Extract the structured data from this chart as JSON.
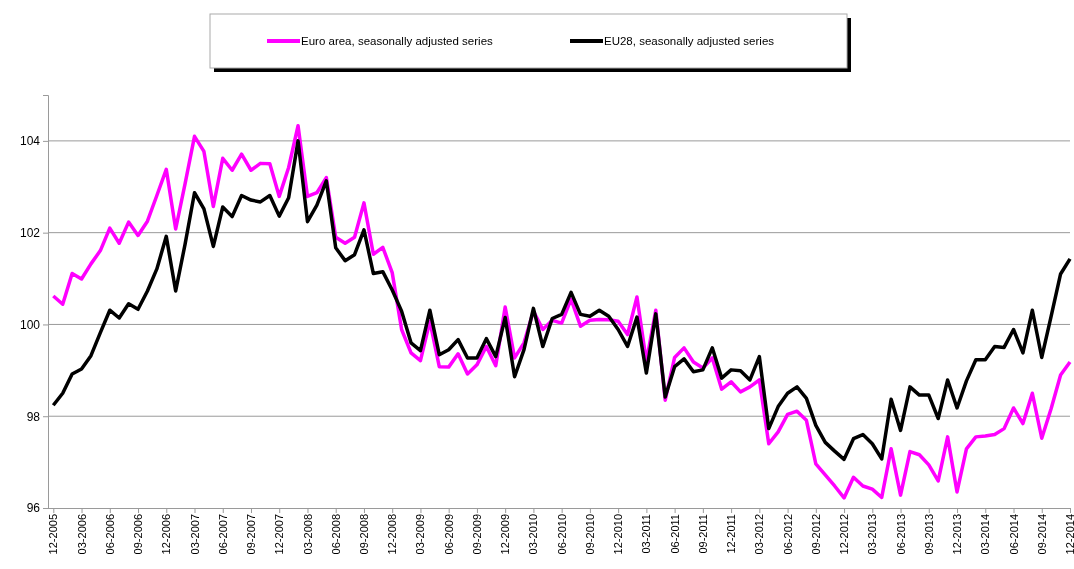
{
  "chart_data": {
    "type": "line",
    "categories": [
      "12-2005",
      null,
      null,
      "03-2006",
      null,
      null,
      "06-2006",
      null,
      null,
      "09-2006",
      null,
      null,
      "12-2006",
      null,
      null,
      "03-2007",
      null,
      null,
      "06-2007",
      null,
      null,
      "09-2007",
      null,
      null,
      "12-2007",
      null,
      null,
      "03-2008",
      null,
      null,
      "06-2008",
      null,
      null,
      "09-2008",
      null,
      null,
      "12-2008",
      null,
      null,
      "03-2009",
      null,
      null,
      "06-2009",
      null,
      null,
      "09-2009",
      null,
      null,
      "12-2009",
      null,
      null,
      "03-2010",
      null,
      null,
      "06-2010",
      null,
      null,
      "09-2010",
      null,
      null,
      "12-2010",
      null,
      null,
      "03-2011",
      null,
      null,
      "06-2011",
      null,
      null,
      "09-2011",
      null,
      null,
      "12-2011",
      null,
      null,
      "03-2012",
      null,
      null,
      "06-2012",
      null,
      null,
      "09-2012",
      null,
      null,
      "12-2012",
      null,
      null,
      "03-2013",
      null,
      null,
      "06-2013",
      null,
      null,
      "09-2013",
      null,
      null,
      "12-2013",
      null,
      null,
      "03-2014",
      null,
      null,
      "06-2014",
      null,
      null,
      "09-2014",
      null,
      null,
      "12-2014"
    ],
    "series": [
      {
        "name": "Euro area, seasonally adjusted series",
        "color": "#ff00ff",
        "values": [
          100.62,
          100.44,
          101.11,
          100.99,
          101.32,
          101.61,
          102.1,
          101.77,
          102.23,
          101.94,
          102.25,
          102.81,
          103.38,
          102.08,
          103.07,
          104.1,
          103.77,
          102.57,
          103.62,
          103.36,
          103.71,
          103.36,
          103.51,
          103.5,
          102.79,
          103.42,
          104.33,
          102.79,
          102.87,
          103.2,
          101.9,
          101.77,
          101.9,
          102.65,
          101.53,
          101.68,
          101.13,
          99.89,
          99.38,
          99.21,
          100.07,
          99.08,
          99.07,
          99.36,
          98.92,
          99.12,
          99.52,
          99.1,
          100.38,
          99.27,
          99.6,
          100.29,
          99.89,
          100.09,
          100.03,
          100.55,
          99.96,
          100.09,
          100.11,
          100.1,
          100.07,
          99.78,
          100.6,
          99.19,
          100.31,
          98.35,
          99.28,
          99.49,
          99.18,
          99.05,
          99.27,
          98.59,
          98.75,
          98.53,
          98.64,
          98.79,
          97.4,
          97.66,
          98.04,
          98.11,
          97.91,
          96.96,
          96.72,
          96.48,
          96.22,
          96.67,
          96.48,
          96.41,
          96.23,
          97.29,
          96.28,
          97.23,
          97.16,
          96.94,
          96.59,
          97.55,
          96.35,
          97.29,
          97.55,
          97.57,
          97.6,
          97.73,
          98.18,
          97.84,
          98.5,
          97.52,
          98.17,
          98.9,
          99.18
        ]
      },
      {
        "name": "EU28, seasonally adjusted series",
        "color": "#000000",
        "values": [
          98.24,
          98.5,
          98.92,
          99.03,
          99.32,
          99.82,
          100.31,
          100.14,
          100.45,
          100.33,
          100.73,
          101.21,
          101.92,
          100.73,
          101.75,
          102.87,
          102.52,
          101.7,
          102.56,
          102.35,
          102.81,
          102.71,
          102.67,
          102.81,
          102.36,
          102.76,
          104.0,
          102.24,
          102.6,
          103.13,
          101.67,
          101.39,
          101.52,
          102.06,
          101.11,
          101.15,
          100.75,
          100.29,
          99.6,
          99.43,
          100.31,
          99.34,
          99.45,
          99.67,
          99.27,
          99.27,
          99.69,
          99.3,
          100.15,
          98.86,
          99.45,
          100.35,
          99.52,
          100.13,
          100.22,
          100.7,
          100.22,
          100.18,
          100.31,
          100.18,
          99.89,
          99.52,
          100.16,
          98.94,
          100.23,
          98.42,
          99.08,
          99.25,
          98.97,
          99.01,
          99.49,
          98.83,
          99.01,
          98.99,
          98.79,
          99.3,
          97.73,
          98.21,
          98.5,
          98.64,
          98.39,
          97.8,
          97.43,
          97.24,
          97.06,
          97.51,
          97.6,
          97.4,
          97.07,
          98.37,
          97.69,
          98.64,
          98.46,
          98.46,
          97.95,
          98.79,
          98.18,
          98.77,
          99.23,
          99.23,
          99.52,
          99.5,
          99.89,
          99.38,
          100.31,
          99.28,
          100.18,
          101.1,
          101.43
        ]
      }
    ],
    "ylim": [
      96,
      105
    ],
    "yticks": [
      96,
      98,
      100,
      102,
      104
    ],
    "grid": "y",
    "legend": "top"
  }
}
